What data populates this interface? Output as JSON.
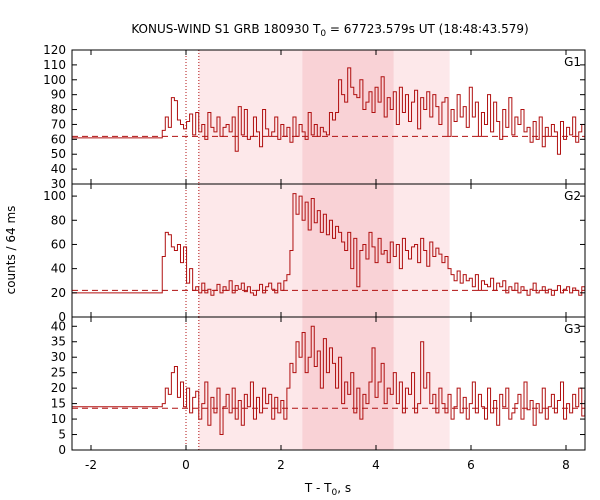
{
  "chart_data": {
    "type": "line",
    "title_main": "KONUS-WIND S1 GRB 180930 T",
    "title_sub": "0",
    "title_rest": " = 67723.579s UT (18:48:43.579)",
    "xlabel_main": "T - T",
    "xlabel_sub": "0",
    "xlabel_rest": ", s",
    "ylabel": "counts / 64 ms",
    "xlim": [
      -2.4,
      8.4
    ],
    "xticks": [
      -2,
      0,
      2,
      4,
      6,
      8
    ],
    "reference_lines_x": [
      0.0,
      0.27
    ],
    "shaded_intervals": [
      {
        "name": "wide-interval",
        "x0": 0.27,
        "x1": 5.55,
        "color": "#fde8ea"
      },
      {
        "name": "inner-interval",
        "x0": 2.45,
        "x1": 4.37,
        "color": "#f9d2d6"
      }
    ],
    "panels": [
      {
        "name": "G1",
        "ylim": [
          30,
          120
        ],
        "yticks": [
          30,
          40,
          50,
          60,
          70,
          80,
          90,
          100,
          110,
          120
        ],
        "background_level": 62,
        "pre_level": 61,
        "values": [
          66,
          75,
          68,
          88,
          86,
          73,
          70,
          67,
          72,
          77,
          63,
          78,
          65,
          70,
          60,
          78,
          68,
          65,
          75,
          62,
          68,
          70,
          65,
          75,
          52,
          82,
          63,
          80,
          60,
          62,
          75,
          65,
          55,
          80,
          67,
          62,
          65,
          75,
          60,
          70,
          62,
          68,
          58,
          75,
          62,
          70,
          65,
          60,
          78,
          63,
          70,
          62,
          68,
          65,
          63,
          78,
          73,
          78,
          100,
          90,
          85,
          108,
          95,
          90,
          88,
          100,
          80,
          85,
          92,
          78,
          95,
          85,
          102,
          75,
          88,
          80,
          92,
          70,
          95,
          78,
          90,
          72,
          85,
          93,
          67,
          88,
          80,
          92,
          75,
          90,
          82,
          70,
          85,
          88,
          62,
          80,
          72,
          90,
          75,
          82,
          68,
          95,
          75,
          85,
          62,
          78,
          70,
          90,
          65,
          85,
          72,
          60,
          80,
          68,
          88,
          63,
          75,
          70,
          80,
          65,
          68,
          58,
          72,
          60,
          75,
          55,
          68,
          62,
          70,
          65,
          50,
          72,
          60,
          68,
          63,
          75,
          58,
          65,
          70,
          60,
          55,
          72,
          62,
          80,
          58,
          65,
          70,
          62,
          75,
          55,
          68,
          60,
          72
        ],
        "label": "G1"
      },
      {
        "name": "G2",
        "ylim": [
          0,
          110
        ],
        "yticks": [
          0,
          20,
          40,
          60,
          80,
          100
        ],
        "background_level": 22,
        "pre_level": 20,
        "values": [
          50,
          70,
          68,
          58,
          55,
          60,
          45,
          58,
          28,
          40,
          22,
          25,
          20,
          28,
          20,
          23,
          18,
          22,
          27,
          20,
          25,
          22,
          30,
          20,
          26,
          23,
          28,
          21,
          25,
          20,
          18,
          22,
          27,
          20,
          25,
          28,
          23,
          20,
          28,
          22,
          30,
          35,
          55,
          102,
          85,
          100,
          80,
          95,
          72,
          98,
          78,
          88,
          70,
          85,
          68,
          80,
          65,
          75,
          70,
          62,
          55,
          70,
          40,
          65,
          25,
          55,
          60,
          48,
          70,
          58,
          45,
          65,
          52,
          55,
          45,
          62,
          50,
          60,
          40,
          65,
          55,
          48,
          58,
          60,
          45,
          65,
          55,
          42,
          62,
          50,
          57,
          52,
          45,
          50,
          40,
          35,
          30,
          38,
          28,
          35,
          30,
          32,
          25,
          35,
          22,
          30,
          27,
          25,
          32,
          22,
          28,
          25,
          30,
          20,
          25,
          22,
          28,
          20,
          25,
          22,
          18,
          23,
          28,
          20,
          22,
          25,
          20,
          23,
          18,
          22,
          26,
          20,
          23,
          25,
          20,
          24,
          22,
          18,
          25,
          22,
          20,
          24,
          22,
          25
        ],
        "label": "G2"
      },
      {
        "name": "G3",
        "ylim": [
          0,
          43
        ],
        "yticks": [
          0,
          5,
          10,
          15,
          20,
          25,
          30,
          35,
          40
        ],
        "background_level": 13.5,
        "pre_level": 14,
        "values": [
          15,
          20,
          18,
          25,
          27,
          17,
          22,
          14,
          20,
          12,
          17,
          19,
          10,
          15,
          22,
          8,
          17,
          12,
          20,
          5,
          14,
          18,
          12,
          20,
          10,
          16,
          8,
          18,
          14,
          22,
          10,
          17,
          12,
          20,
          15,
          18,
          10,
          17,
          12,
          16,
          10,
          20,
          28,
          25,
          35,
          30,
          38,
          25,
          30,
          40,
          27,
          32,
          20,
          36,
          25,
          33,
          28,
          20,
          30,
          15,
          22,
          18,
          25,
          12,
          20,
          10,
          18,
          15,
          22,
          33,
          17,
          22,
          28,
          15,
          20,
          18,
          25,
          15,
          22,
          12,
          20,
          18,
          25,
          12,
          15,
          35,
          20,
          25,
          15,
          18,
          12,
          20,
          15,
          12,
          18,
          10,
          14,
          20,
          12,
          17,
          10,
          15,
          22,
          12,
          18,
          14,
          10,
          20,
          12,
          16,
          8,
          18,
          14,
          20,
          10,
          12,
          15,
          18,
          10,
          22,
          13,
          16,
          8,
          15,
          12,
          20,
          10,
          14,
          18,
          12,
          16,
          22,
          10,
          15,
          12,
          18,
          14,
          20,
          11,
          16,
          12,
          10,
          15,
          13,
          18,
          12,
          14,
          16,
          12,
          10,
          14
        ]
      }
    ]
  }
}
